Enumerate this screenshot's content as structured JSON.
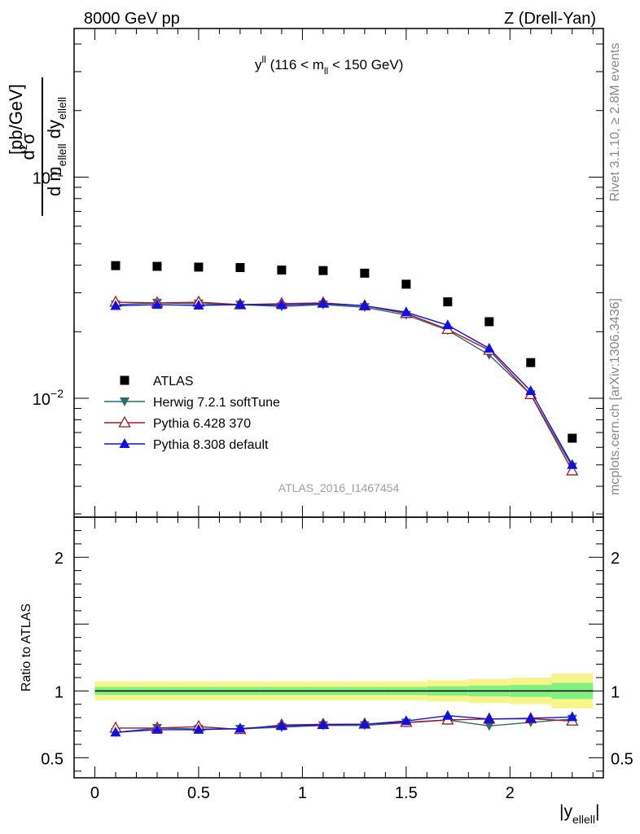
{
  "header": {
    "left": "8000 GeV pp",
    "right": "Z (Drell-Yan)"
  },
  "side_labels": {
    "rivet": "Rivet 3.1.10, ≥ 2.8M events",
    "mcplots": "mcplots.cern.ch [arXiv:1306.3436]"
  },
  "watermark": "ATLAS_2016_I1467454",
  "colors": {
    "ATLAS": "#000000",
    "Herwig": "#2e6b6b",
    "Pythia6": "#a0182a",
    "Pythia8": "#1010e0",
    "band_inner": "#80f080",
    "band_outer": "#f5f58a"
  },
  "chart_data": [
    {
      "type": "scatter",
      "panel": "main",
      "title": "y^ll (116 < m_ll < 150 GeV)",
      "title_parts": {
        "lead": "y",
        "lead_sup": "ll",
        "pre": "(116 < m",
        "sub": "ll",
        "post": "< 150 GeV)"
      },
      "ylabel": "d²σ / d m_ellell dy_ellell [pb/GeV]",
      "ylabel_parts": {
        "unit": "[pb/GeV]"
      },
      "yscale": "log",
      "ylim": [
        0.0029,
        0.47
      ],
      "xlim": [
        -0.1,
        2.45
      ],
      "yticks": [
        {
          "value": 0.1,
          "label": "10",
          "exp": "−1"
        },
        {
          "value": 0.01,
          "label": "10",
          "exp": "−2"
        }
      ],
      "x": [
        0.1,
        0.3,
        0.5,
        0.7,
        0.9,
        1.1,
        1.3,
        1.5,
        1.7,
        1.9,
        2.1,
        2.3
      ],
      "series": [
        {
          "name": "ATLAS",
          "marker": "square",
          "values": [
            0.0398,
            0.0395,
            0.0392,
            0.039,
            0.038,
            0.0378,
            0.0368,
            0.0328,
            0.0273,
            0.0222,
            0.0145,
            0.0066
          ]
        },
        {
          "name": "Herwig 7.2.1 softTune",
          "marker": "triangle-down",
          "values": [
            0.0265,
            0.027,
            0.0268,
            0.0265,
            0.026,
            0.0265,
            0.0258,
            0.0238,
            0.0203,
            0.0157,
            0.0104,
            0.0049
          ]
        },
        {
          "name": "Pythia 6.428 370",
          "marker": "triangle-open",
          "values": [
            0.0272,
            0.027,
            0.0272,
            0.0265,
            0.0268,
            0.027,
            0.0262,
            0.0242,
            0.0205,
            0.0165,
            0.0104,
            0.0047
          ]
        },
        {
          "name": "Pythia 8.308 default",
          "marker": "triangle-up",
          "values": [
            0.0262,
            0.0265,
            0.0263,
            0.0265,
            0.0264,
            0.0268,
            0.0262,
            0.0245,
            0.0214,
            0.0168,
            0.0108,
            0.005
          ]
        }
      ],
      "legend": [
        "ATLAS",
        "Herwig 7.2.1 softTune",
        "Pythia 6.428 370",
        "Pythia 8.308 default"
      ]
    },
    {
      "type": "line",
      "panel": "ratio",
      "ylabel": "Ratio to ATLAS",
      "xlabel": "|y_ellell|",
      "xlabel_parts": {
        "lead": "|y",
        "sub": "ellell",
        "tail": "|"
      },
      "ylim": [
        0.35,
        2.3
      ],
      "xlim": [
        -0.1,
        2.45
      ],
      "yticks": [
        0.5,
        1,
        2
      ],
      "ytick_labels": [
        "0.5",
        "1",
        "2"
      ],
      "xticks": [
        0,
        0.5,
        1,
        1.5,
        2
      ],
      "xtick_labels": [
        "0",
        "0.5",
        "1",
        "1.5",
        "2"
      ],
      "x": [
        0.1,
        0.3,
        0.5,
        0.7,
        0.9,
        1.1,
        1.3,
        1.5,
        1.7,
        1.9,
        2.1,
        2.3
      ],
      "band": {
        "inner": [
          0.03,
          0.03,
          0.03,
          0.03,
          0.03,
          0.03,
          0.03,
          0.03,
          0.035,
          0.04,
          0.045,
          0.06
        ],
        "outer": [
          0.07,
          0.07,
          0.07,
          0.07,
          0.07,
          0.07,
          0.07,
          0.07,
          0.08,
          0.09,
          0.1,
          0.13
        ]
      },
      "series": [
        {
          "name": "Herwig 7.2.1 softTune",
          "values": [
            0.69,
            0.722,
            0.715,
            0.716,
            0.728,
            0.742,
            0.742,
            0.762,
            0.782,
            0.738,
            0.765,
            0.79
          ]
        },
        {
          "name": "Pythia 6.428 370",
          "values": [
            0.722,
            0.722,
            0.733,
            0.712,
            0.745,
            0.75,
            0.752,
            0.765,
            0.783,
            0.79,
            0.792,
            0.775
          ]
        },
        {
          "name": "Pythia 8.308 default",
          "values": [
            0.69,
            0.71,
            0.71,
            0.718,
            0.738,
            0.745,
            0.75,
            0.775,
            0.815,
            0.79,
            0.795,
            0.805
          ]
        }
      ]
    }
  ]
}
